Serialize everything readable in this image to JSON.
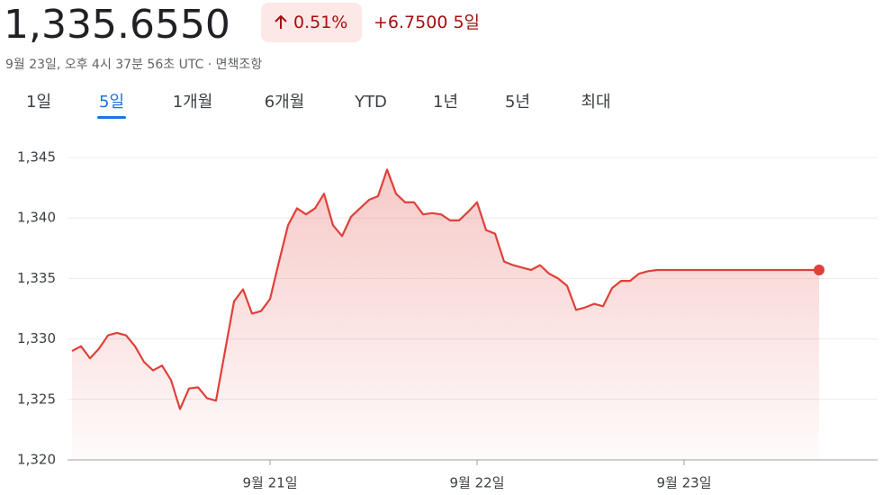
{
  "header": {
    "price": "1,335.6550",
    "change_percent": "0.51%",
    "change": "+6.7500 5일",
    "timestamp": "9월 23일, 오후 4시 37분 56초 UTC · 면책조항"
  },
  "tabs": [
    "1일",
    "5일",
    "1개월",
    "6개월",
    "YTD",
    "1년",
    "5년",
    "최대"
  ],
  "selected_tab": 1,
  "chart_data": {
    "type": "line",
    "color": "#e0403a",
    "grid": true,
    "categories": [
      null,
      null,
      null,
      null,
      null,
      null,
      null,
      null,
      null,
      null,
      null,
      null,
      null,
      null,
      null,
      null,
      null,
      null,
      null,
      null,
      null,
      null,
      "9월 21일",
      null,
      null,
      null,
      null,
      null,
      null,
      null,
      null,
      null,
      null,
      null,
      null,
      null,
      null,
      null,
      null,
      null,
      null,
      null,
      null,
      null,
      null,
      "9월 22일",
      null,
      null,
      null,
      null,
      null,
      null,
      null,
      null,
      null,
      null,
      null,
      null,
      null,
      null,
      null,
      null,
      null,
      null,
      null,
      null,
      null,
      null,
      "9월 23일",
      null,
      null,
      null,
      null,
      null,
      null,
      null,
      null,
      null,
      null,
      null,
      null,
      null,
      null,
      null,
      null,
      null,
      null,
      null,
      null,
      null
    ],
    "values": [
      1329.0,
      1329.4,
      1328.4,
      1329.2,
      1330.3,
      1330.5,
      1330.3,
      1329.4,
      1328.1,
      1327.4,
      1327.8,
      1326.6,
      1324.2,
      1325.9,
      1326.0,
      1325.1,
      1324.9,
      1329.0,
      1333.1,
      1334.1,
      1332.1,
      1332.3,
      1333.3,
      1336.4,
      1339.4,
      1340.8,
      1340.3,
      1340.8,
      1342.0,
      1339.4,
      1338.5,
      1340.1,
      1340.8,
      1341.5,
      1341.8,
      1344.0,
      1342.0,
      1341.3,
      1341.3,
      1340.3,
      1340.4,
      1340.3,
      1339.8,
      1339.8,
      1340.5,
      1341.3,
      1339.0,
      1338.7,
      1336.4,
      1336.1,
      1335.9,
      1335.7,
      1336.1,
      1335.4,
      1335.0,
      1334.4,
      1332.4,
      1332.6,
      1332.9,
      1332.7,
      1334.2,
      1334.8,
      1334.8,
      1335.4,
      1335.6,
      1335.7,
      1335.7,
      1335.7,
      1335.7,
      1335.7,
      1335.7,
      1335.7,
      1335.7,
      1335.7,
      1335.7,
      1335.7,
      1335.7,
      1335.7,
      1335.7,
      1335.7,
      1335.7,
      1335.7,
      1335.7,
      1335.7,
      null,
      null,
      null,
      null,
      null,
      null
    ],
    "ylim": [
      1320,
      1345
    ],
    "yticks": [
      {
        "value": 1320,
        "label": "1,320"
      },
      {
        "value": 1325,
        "label": "1,325"
      },
      {
        "value": 1330,
        "label": "1,330"
      },
      {
        "value": 1335,
        "label": "1,335"
      },
      {
        "value": 1340,
        "label": "1,340"
      },
      {
        "value": 1345,
        "label": "1,345"
      }
    ]
  }
}
